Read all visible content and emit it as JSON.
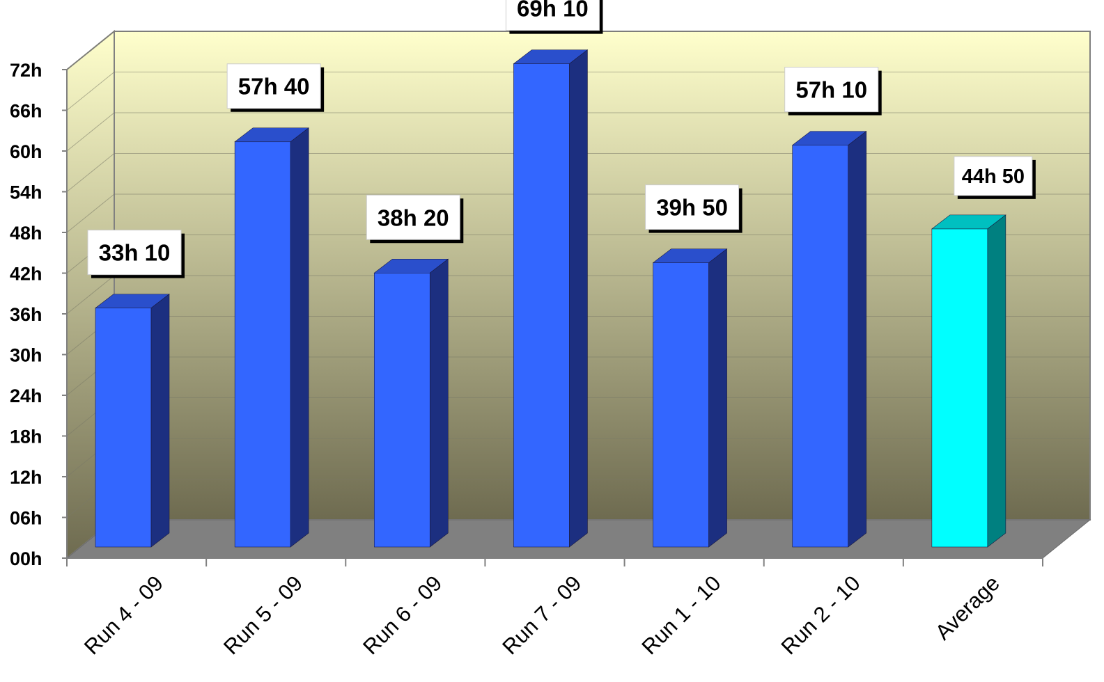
{
  "chart_data": {
    "type": "bar",
    "title": "",
    "xlabel": "",
    "ylabel": "",
    "categories": [
      "Run 4 - 09",
      "Run 5 - 09",
      "Run 6 - 09",
      "Run 7 - 09",
      "Run 1 - 10",
      "Run 2 - 10",
      "Average"
    ],
    "values": [
      33.1667,
      57.6667,
      38.3333,
      69.1667,
      39.8333,
      57.1667,
      44.8333
    ],
    "data_labels": [
      "33h 10",
      "57h 40",
      "38h 20",
      "69h 10",
      "39h 50",
      "57h 10",
      "44h 50"
    ],
    "y_ticks": [
      0,
      6,
      12,
      18,
      24,
      30,
      36,
      42,
      48,
      54,
      60,
      66,
      72
    ],
    "y_tick_labels": [
      "00h",
      "06h",
      "12h",
      "18h",
      "24h",
      "30h",
      "36h",
      "42h",
      "48h",
      "54h",
      "60h",
      "66h",
      "72h"
    ],
    "ylim": [
      0,
      72
    ],
    "grid": true,
    "legend": "none",
    "three_d": true,
    "colors": {
      "bar_front": "#3366FF",
      "bar_top": "#2A4FCC",
      "bar_side": "#1C2F80",
      "average_front": "#00FFFF",
      "average_top": "#00C0C0",
      "average_side": "#008080",
      "wall_top": "#FFFFCC",
      "wall_bottom": "#6E6B50",
      "floor": "#808080"
    }
  }
}
